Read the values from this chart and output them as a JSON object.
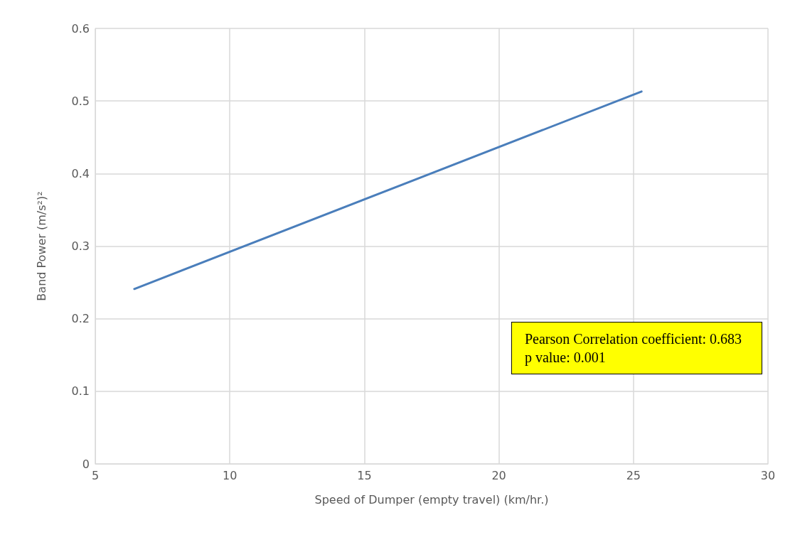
{
  "chart_data": {
    "type": "line",
    "xlabel": "Speed of Dumper (empty travel) (km/hr.)",
    "ylabel": "Band Power (m/s²)²",
    "series": [
      {
        "x": [
          6.45,
          25.3
        ],
        "values": [
          0.241,
          0.513
        ],
        "color": "#4a7ebb"
      }
    ],
    "xlim": [
      5,
      30
    ],
    "xticks": [
      5,
      10,
      15,
      20,
      25,
      30
    ],
    "ylim": [
      0,
      0.6
    ],
    "yticks": [
      0,
      0.1,
      0.2,
      0.3,
      0.4,
      0.5,
      0.6
    ],
    "grid": true,
    "marker": "none",
    "line_style": "solid",
    "annotations": [
      "Pearson Correlation coefficient: 0.683",
      "p value: 0.001"
    ]
  }
}
